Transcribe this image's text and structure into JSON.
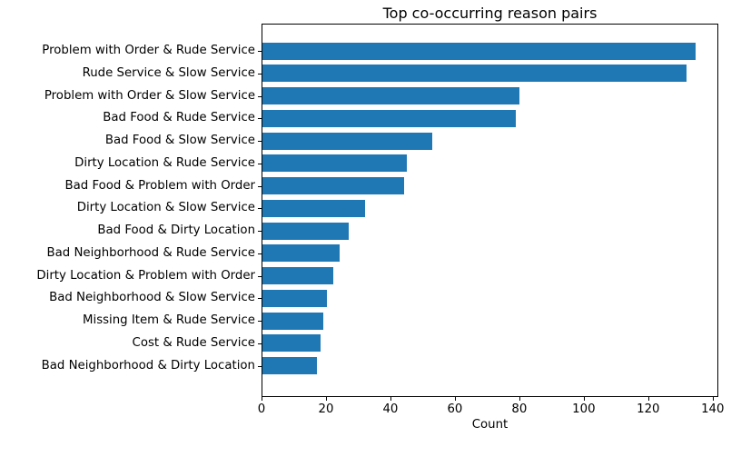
{
  "chart_data": {
    "type": "bar",
    "orientation": "horizontal",
    "title": "Top co-occurring reason pairs",
    "xlabel": "Count",
    "ylabel": "",
    "categories": [
      "Problem with Order & Rude Service",
      "Rude Service & Slow Service",
      "Problem with Order & Slow Service",
      "Bad Food & Rude Service",
      "Bad Food & Slow Service",
      "Dirty Location & Rude Service",
      "Bad Food & Problem with Order",
      "Dirty Location & Slow Service",
      "Bad Food & Dirty Location",
      "Bad Neighborhood & Rude Service",
      "Dirty Location & Problem with Order",
      "Bad Neighborhood & Slow Service",
      "Missing Item & Rude Service",
      "Cost & Rude Service",
      "Bad Neighborhood & Dirty Location"
    ],
    "values": [
      135,
      132,
      80,
      79,
      53,
      45,
      44,
      32,
      27,
      24,
      22,
      20,
      19,
      18,
      17
    ],
    "xticks": [
      0,
      20,
      40,
      60,
      80,
      100,
      120,
      140
    ],
    "xlim": [
      0,
      141.75
    ],
    "bar_color": "#1f77b4",
    "grid": false,
    "legend": false
  }
}
